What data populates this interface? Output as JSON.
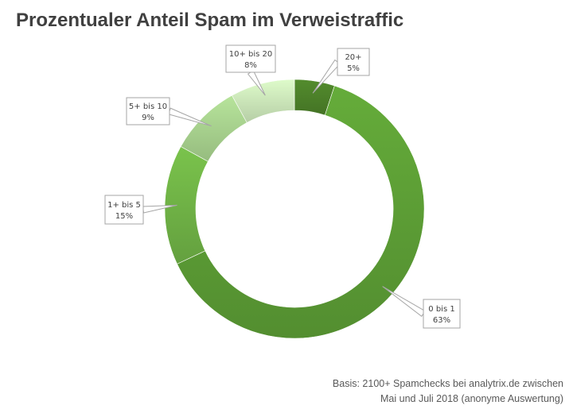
{
  "chart_data": {
    "type": "pie",
    "title": "Prozentualer Anteil Spam im Verweistraffic",
    "categories": [
      "20+",
      "0 bis 1",
      "1+ bis 5",
      "5+ bis 10",
      "10+ bis 20"
    ],
    "values": [
      5,
      63,
      15,
      9,
      8
    ],
    "value_labels": [
      "5%",
      "63%",
      "15%",
      "9%",
      "8%"
    ],
    "colors": [
      "#4a7d28",
      "#5a9a34",
      "#6dae44",
      "#a3cc8a",
      "#c6e0b4"
    ],
    "donut": true,
    "legend": "none"
  },
  "source_note": {
    "line1": "Basis: 2100+ Spamchecks bei analytrix.de zwischen",
    "line2": "Mai und Juli 2018 (anonyme Auswertung)"
  }
}
